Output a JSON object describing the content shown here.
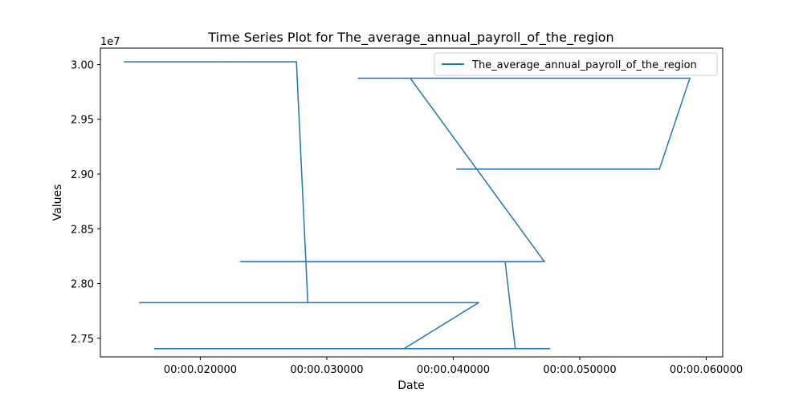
{
  "chart_data": {
    "type": "line",
    "title": "Time Series Plot for The_average_annual_payroll_of_the_region",
    "xlabel": "Date",
    "ylabel": "Values",
    "y_offset_label": "1e7",
    "xlim": [
      0.0121,
      0.0613
    ],
    "ylim": [
      27330000,
      30150000
    ],
    "x_ticks": [
      0.02,
      0.03,
      0.04,
      0.05,
      0.06
    ],
    "x_tick_labels": [
      "00:00.020000",
      "00:00.030000",
      "00:00.040000",
      "00:00.050000",
      "00:00.060000"
    ],
    "y_ticks": [
      27500000,
      28000000,
      28500000,
      29000000,
      29500000,
      30000000
    ],
    "y_tick_labels": [
      "2.75",
      "2.80",
      "2.85",
      "2.90",
      "2.95",
      "3.00"
    ],
    "grid": false,
    "legend_position": "top-right",
    "series": [
      {
        "name": "The_average_annual_payroll_of_the_region",
        "color": "#1f77b4",
        "x": [
          0.014,
          0.022,
          0.0276,
          0.0285,
          0.0152,
          0.0293,
          0.042,
          0.0361,
          0.0164,
          0.0476,
          0.0449,
          0.0441,
          0.0232,
          0.0472,
          0.0366,
          0.0325,
          0.0587,
          0.0563,
          0.0403,
          0.0523
        ],
        "y": [
          30025000,
          30025000,
          30025000,
          27825000,
          27825000,
          27825000,
          27825000,
          27405000,
          27405000,
          27405000,
          27405000,
          28200000,
          28200000,
          28200000,
          29875000,
          29875000,
          29875000,
          29045000,
          29045000,
          29045000
        ]
      }
    ]
  }
}
